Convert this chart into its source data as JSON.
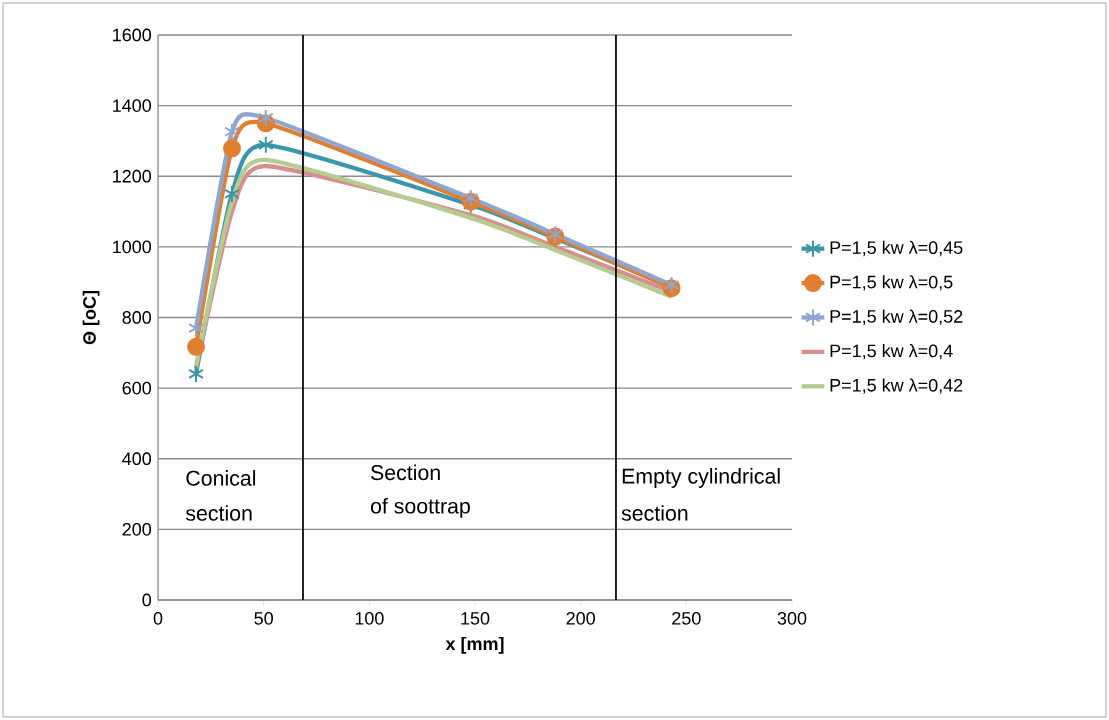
{
  "chart_data": {
    "type": "line",
    "xlabel": "x  [mm]",
    "ylabel": "Θ [oC]",
    "x": [
      18,
      35,
      51,
      148,
      188,
      243
    ],
    "series": [
      {
        "name": "P=1,5 kw λ=0,45",
        "color": "#3a96aa",
        "marker": "cross",
        "values": [
          640,
          1150,
          1289,
          1119,
          1024,
          887
        ]
      },
      {
        "name": "P=1,5 kw λ=0,5",
        "color": "#e07f31",
        "marker": "circle",
        "values": [
          717,
          1279,
          1350,
          1128,
          1029,
          883
        ]
      },
      {
        "name": "P=1,5 kw λ=0,52",
        "color": "#8fa7d0",
        "marker": "cross",
        "values": [
          770,
          1326,
          1365,
          1138,
          1036,
          892
        ]
      },
      {
        "name": "P=1,5 kw λ=0,4",
        "color": "#d68f8d",
        "marker": "none",
        "values": [
          655,
          1099,
          1229,
          1090,
          1000,
          873
        ]
      },
      {
        "name": "P=1,5 kw λ=0,42",
        "color": "#b4cc91",
        "marker": "none",
        "values": [
          663,
          1128,
          1246,
          1082,
          991,
          859
        ]
      }
    ],
    "xlim": [
      0,
      300
    ],
    "xticks": [
      0,
      50,
      100,
      150,
      200,
      250,
      300
    ],
    "ylim": [
      0,
      1600
    ],
    "yticks": [
      0,
      200,
      400,
      600,
      800,
      1000,
      1200,
      1400,
      1600
    ],
    "grid": "y",
    "legend": "right",
    "ref_lines": [
      {
        "axis": "x",
        "value": 68.6,
        "color": "#000000"
      },
      {
        "axis": "x",
        "value": 216.7,
        "color": "#000000"
      }
    ],
    "annotations": [
      "Conical",
      "section",
      "Section",
      "of soottrap",
      "Empty cylindrical",
      "section"
    ]
  }
}
